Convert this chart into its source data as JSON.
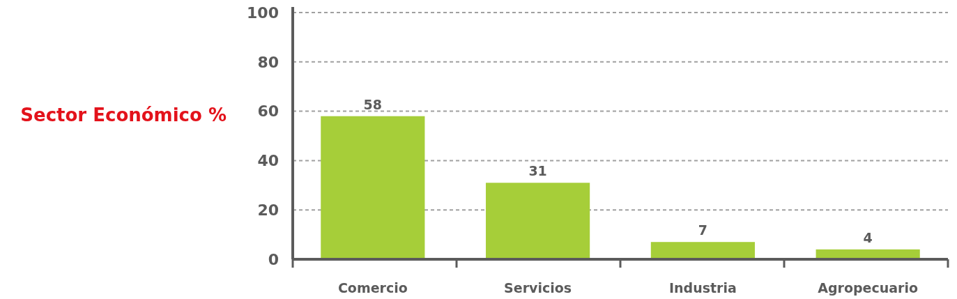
{
  "chart_data": {
    "type": "bar",
    "title": "Sector Económico %",
    "categories": [
      "Comercio",
      "Servicios",
      "Industria",
      "Agropecuario"
    ],
    "values": [
      58,
      31,
      7,
      4
    ],
    "color": "#a6ce39",
    "ylim": [
      0,
      100
    ],
    "yticks": [
      0,
      20,
      40,
      60,
      80,
      100
    ],
    "grid": "y",
    "data_labels": true
  }
}
